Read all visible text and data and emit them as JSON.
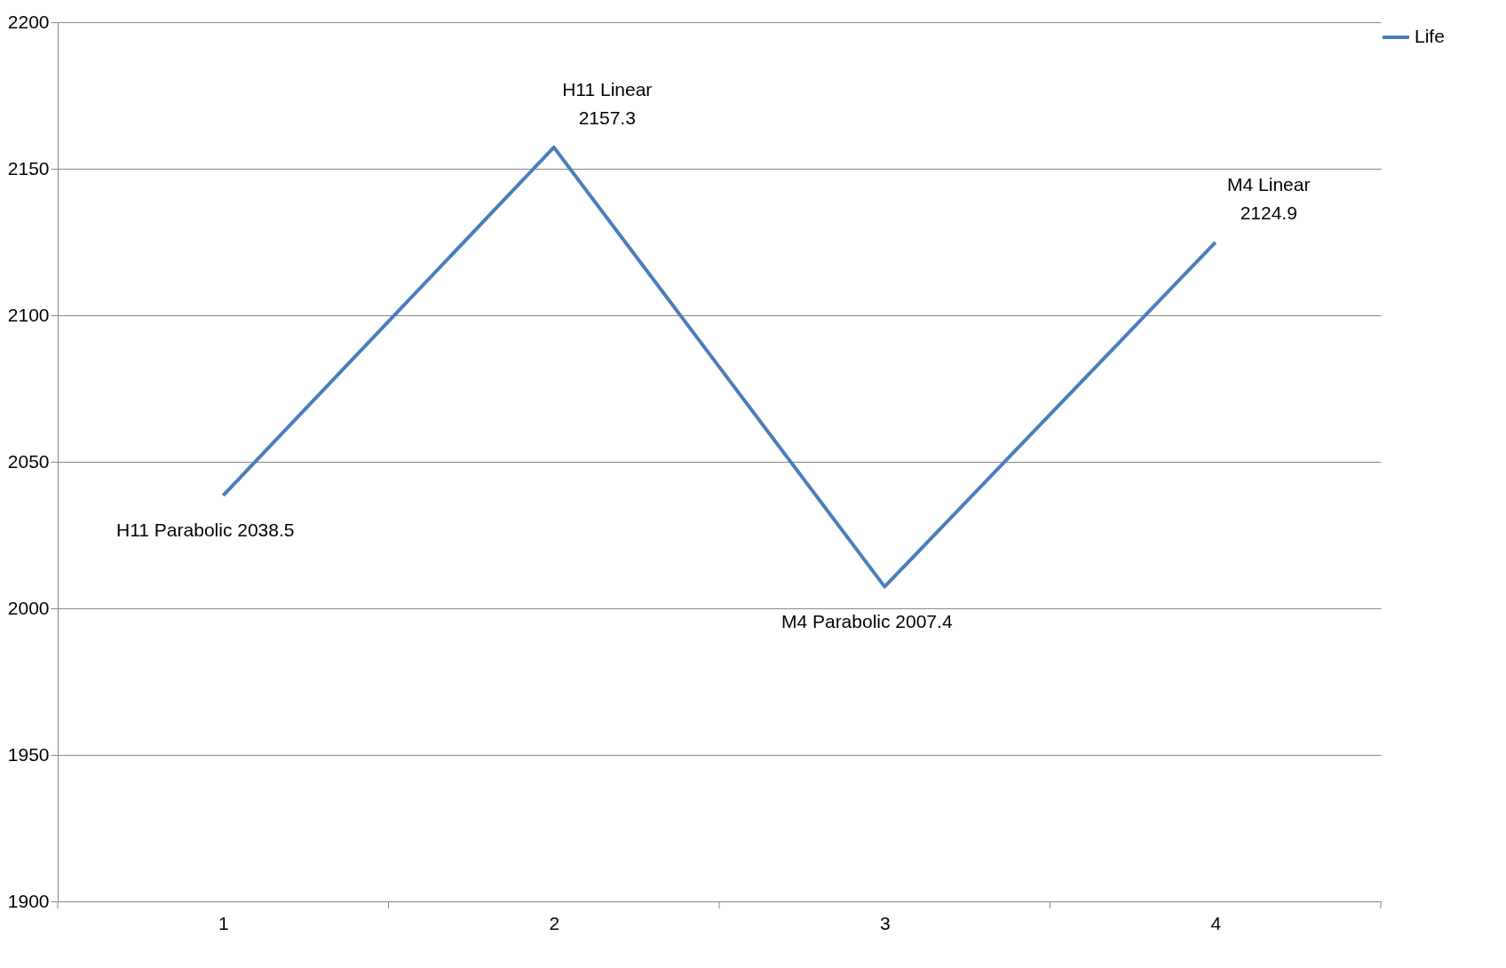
{
  "chart_data": {
    "type": "line",
    "categories": [
      "1",
      "2",
      "3",
      "4"
    ],
    "series": [
      {
        "name": "Life",
        "color": "#4a7ebb",
        "values": [
          2038.5,
          2157.3,
          2007.4,
          2124.9
        ]
      }
    ],
    "ylim": [
      1900,
      2200
    ],
    "yticks": [
      1900,
      1950,
      2000,
      2050,
      2100,
      2150,
      2200
    ],
    "grid": "y",
    "legend": "right",
    "marker": "none",
    "line_style": "solid",
    "annotations": [
      {
        "text": "H11 Parabolic 2038.5",
        "x": "1",
        "y": 2038.5
      },
      {
        "text": "H11 Linear 2157.3",
        "x": "2",
        "y": 2157.3
      },
      {
        "text": "M4 Parabolic 2007.4",
        "x": "3",
        "y": 2007.4
      },
      {
        "text": "M4 Linear 2124.9",
        "x": "4",
        "y": 2124.9
      }
    ]
  }
}
